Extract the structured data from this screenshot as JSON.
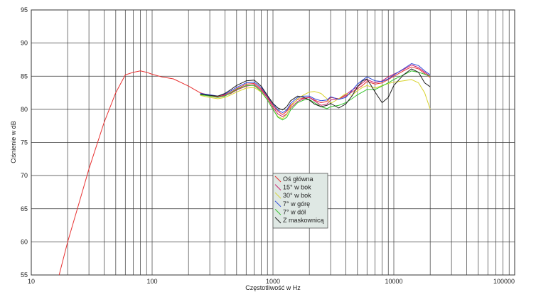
{
  "chart_data": {
    "type": "line",
    "title": "",
    "xlabel": "Częstotliwość w Hz",
    "ylabel": "Ciśnienie w dB",
    "xscale": "log",
    "xlim": [
      10,
      100000
    ],
    "ylim": [
      55,
      95
    ],
    "xticks": [
      10,
      100,
      1000,
      10000,
      100000
    ],
    "xtick_labels": [
      "10",
      "100",
      "1000",
      "10000",
      "100000"
    ],
    "yticks": [
      55,
      60,
      65,
      70,
      75,
      80,
      85,
      90,
      95
    ],
    "grid": true,
    "legend_position": "center",
    "series": [
      {
        "name": "Oś główna",
        "color": "#e83030",
        "points": [
          [
            17,
            55
          ],
          [
            20,
            60
          ],
          [
            25,
            66
          ],
          [
            30,
            71
          ],
          [
            40,
            78
          ],
          [
            50,
            82.5
          ],
          [
            60,
            85.2
          ],
          [
            70,
            85.6
          ],
          [
            80,
            85.8
          ],
          [
            90,
            85.6
          ],
          [
            100,
            85.3
          ],
          [
            120,
            84.9
          ],
          [
            150,
            84.6
          ],
          [
            200,
            83.5
          ],
          [
            250,
            82.5
          ],
          [
            300,
            82.1
          ],
          [
            350,
            81.9
          ],
          [
            400,
            82.2
          ],
          [
            450,
            82.6
          ],
          [
            500,
            83.1
          ],
          [
            600,
            83.8
          ],
          [
            700,
            83.9
          ],
          [
            800,
            83.1
          ],
          [
            900,
            81.9
          ],
          [
            1000,
            80.6
          ],
          [
            1100,
            79.7
          ],
          [
            1200,
            79.2
          ],
          [
            1300,
            79.7
          ],
          [
            1400,
            80.6
          ],
          [
            1600,
            81.5
          ],
          [
            1800,
            81.7
          ],
          [
            2000,
            81.8
          ],
          [
            2200,
            81.4
          ],
          [
            2500,
            81.0
          ],
          [
            2800,
            81.2
          ],
          [
            3000,
            81.8
          ],
          [
            3500,
            81.6
          ],
          [
            4000,
            82.0
          ],
          [
            4500,
            82.6
          ],
          [
            5000,
            83.1
          ],
          [
            5500,
            83.6
          ],
          [
            6000,
            84.2
          ],
          [
            7000,
            83.8
          ],
          [
            8000,
            84.0
          ],
          [
            9000,
            84.5
          ],
          [
            10000,
            85.0
          ],
          [
            12000,
            85.8
          ],
          [
            14000,
            86.4
          ],
          [
            16000,
            86.1
          ],
          [
            18000,
            85.4
          ],
          [
            20000,
            84.8
          ]
        ]
      },
      {
        "name": "15° w bok",
        "color": "#c81e6e",
        "points": [
          [
            250,
            82.3
          ],
          [
            300,
            82.0
          ],
          [
            350,
            81.8
          ],
          [
            400,
            82.1
          ],
          [
            450,
            82.4
          ],
          [
            500,
            82.9
          ],
          [
            600,
            83.5
          ],
          [
            700,
            83.7
          ],
          [
            800,
            82.9
          ],
          [
            900,
            81.7
          ],
          [
            1000,
            80.3
          ],
          [
            1100,
            79.3
          ],
          [
            1200,
            78.9
          ],
          [
            1300,
            79.3
          ],
          [
            1400,
            80.2
          ],
          [
            1600,
            81.2
          ],
          [
            1800,
            81.6
          ],
          [
            2000,
            81.8
          ],
          [
            2200,
            81.3
          ],
          [
            2500,
            80.6
          ],
          [
            2800,
            80.8
          ],
          [
            3000,
            81.4
          ],
          [
            3500,
            81.6
          ],
          [
            4000,
            82.2
          ],
          [
            4500,
            82.9
          ],
          [
            5000,
            83.4
          ],
          [
            5500,
            84.0
          ],
          [
            6000,
            84.5
          ],
          [
            7000,
            84.0
          ],
          [
            8000,
            84.3
          ],
          [
            9000,
            84.9
          ],
          [
            10000,
            85.3
          ],
          [
            12000,
            86.0
          ],
          [
            14000,
            86.7
          ],
          [
            16000,
            86.3
          ],
          [
            18000,
            85.6
          ],
          [
            20000,
            85.0
          ]
        ]
      },
      {
        "name": "30° w bok",
        "color": "#d7d22a",
        "points": [
          [
            250,
            82.1
          ],
          [
            300,
            81.8
          ],
          [
            350,
            81.6
          ],
          [
            400,
            81.8
          ],
          [
            450,
            82.2
          ],
          [
            500,
            82.6
          ],
          [
            600,
            83.2
          ],
          [
            700,
            83.3
          ],
          [
            800,
            82.6
          ],
          [
            900,
            81.4
          ],
          [
            1000,
            80.0
          ],
          [
            1100,
            78.9
          ],
          [
            1200,
            78.6
          ],
          [
            1300,
            79.2
          ],
          [
            1400,
            80.4
          ],
          [
            1600,
            81.6
          ],
          [
            1800,
            82.2
          ],
          [
            2000,
            82.6
          ],
          [
            2200,
            82.7
          ],
          [
            2500,
            82.4
          ],
          [
            2800,
            81.6
          ],
          [
            3000,
            80.9
          ],
          [
            3500,
            81.6
          ],
          [
            4000,
            82.4
          ],
          [
            4500,
            82.1
          ],
          [
            5000,
            82.8
          ],
          [
            5500,
            83.3
          ],
          [
            6000,
            83.6
          ],
          [
            7000,
            83.2
          ],
          [
            8000,
            83.6
          ],
          [
            9000,
            83.9
          ],
          [
            10000,
            84.1
          ],
          [
            12000,
            84.3
          ],
          [
            14000,
            84.5
          ],
          [
            16000,
            84.0
          ],
          [
            18000,
            82.5
          ],
          [
            20000,
            80.0
          ]
        ]
      },
      {
        "name": "7° w górę",
        "color": "#2a45d8",
        "points": [
          [
            250,
            82.4
          ],
          [
            300,
            82.2
          ],
          [
            350,
            82.0
          ],
          [
            400,
            82.3
          ],
          [
            450,
            82.8
          ],
          [
            500,
            83.3
          ],
          [
            600,
            84.0
          ],
          [
            700,
            84.1
          ],
          [
            800,
            83.3
          ],
          [
            900,
            82.0
          ],
          [
            1000,
            80.8
          ],
          [
            1100,
            79.9
          ],
          [
            1200,
            79.5
          ],
          [
            1300,
            79.9
          ],
          [
            1400,
            80.9
          ],
          [
            1600,
            81.8
          ],
          [
            1800,
            82.0
          ],
          [
            2000,
            82.0
          ],
          [
            2200,
            81.6
          ],
          [
            2500,
            81.3
          ],
          [
            2800,
            81.4
          ],
          [
            3000,
            81.9
          ],
          [
            3500,
            81.5
          ],
          [
            4000,
            81.8
          ],
          [
            4500,
            82.8
          ],
          [
            5000,
            83.8
          ],
          [
            5500,
            84.4
          ],
          [
            6000,
            84.9
          ],
          [
            7000,
            84.3
          ],
          [
            8000,
            84.2
          ],
          [
            9000,
            84.6
          ],
          [
            10000,
            85.2
          ],
          [
            12000,
            86.1
          ],
          [
            14000,
            86.9
          ],
          [
            16000,
            86.6
          ],
          [
            18000,
            85.8
          ],
          [
            20000,
            85.2
          ]
        ]
      },
      {
        "name": "7° w dół",
        "color": "#34c32c",
        "points": [
          [
            250,
            82.2
          ],
          [
            300,
            82.0
          ],
          [
            350,
            81.8
          ],
          [
            400,
            82.0
          ],
          [
            450,
            82.5
          ],
          [
            500,
            83.0
          ],
          [
            600,
            83.6
          ],
          [
            700,
            83.6
          ],
          [
            800,
            82.7
          ],
          [
            900,
            81.4
          ],
          [
            1000,
            80.0
          ],
          [
            1100,
            78.8
          ],
          [
            1200,
            78.4
          ],
          [
            1300,
            78.8
          ],
          [
            1400,
            79.9
          ],
          [
            1600,
            81.0
          ],
          [
            1800,
            81.4
          ],
          [
            2000,
            81.5
          ],
          [
            2200,
            81.0
          ],
          [
            2500,
            80.4
          ],
          [
            2800,
            80.1
          ],
          [
            3000,
            80.4
          ],
          [
            3500,
            80.6
          ],
          [
            4000,
            81.0
          ],
          [
            4500,
            81.6
          ],
          [
            5000,
            82.2
          ],
          [
            5500,
            82.6
          ],
          [
            6000,
            83.0
          ],
          [
            7000,
            83.0
          ],
          [
            8000,
            83.5
          ],
          [
            9000,
            84.0
          ],
          [
            10000,
            84.5
          ],
          [
            12000,
            85.2
          ],
          [
            14000,
            85.8
          ],
          [
            16000,
            85.6
          ],
          [
            18000,
            85.3
          ],
          [
            20000,
            85.0
          ]
        ]
      },
      {
        "name": "Z maskownicą",
        "color": "#1e1e1e",
        "points": [
          [
            250,
            82.3
          ],
          [
            300,
            82.1
          ],
          [
            350,
            82.0
          ],
          [
            400,
            82.4
          ],
          [
            450,
            83.0
          ],
          [
            500,
            83.6
          ],
          [
            600,
            84.3
          ],
          [
            700,
            84.4
          ],
          [
            800,
            83.5
          ],
          [
            900,
            82.1
          ],
          [
            1000,
            80.9
          ],
          [
            1100,
            80.2
          ],
          [
            1200,
            79.9
          ],
          [
            1300,
            80.4
          ],
          [
            1400,
            81.3
          ],
          [
            1600,
            82.0
          ],
          [
            1800,
            81.8
          ],
          [
            2000,
            81.4
          ],
          [
            2200,
            80.8
          ],
          [
            2500,
            80.4
          ],
          [
            2800,
            80.6
          ],
          [
            3000,
            80.9
          ],
          [
            3500,
            80.2
          ],
          [
            4000,
            80.8
          ],
          [
            4500,
            82.0
          ],
          [
            5000,
            83.4
          ],
          [
            5500,
            84.3
          ],
          [
            6000,
            84.6
          ],
          [
            7000,
            82.6
          ],
          [
            8000,
            81.0
          ],
          [
            9000,
            81.8
          ],
          [
            10000,
            83.6
          ],
          [
            12000,
            85.2
          ],
          [
            14000,
            86.1
          ],
          [
            16000,
            85.6
          ],
          [
            18000,
            84.0
          ],
          [
            20000,
            83.4
          ]
        ]
      }
    ]
  }
}
